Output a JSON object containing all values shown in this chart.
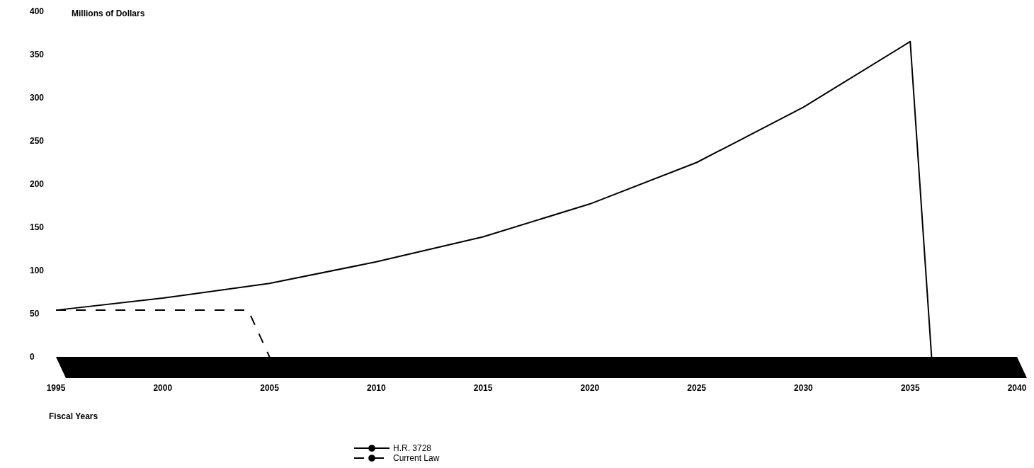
{
  "chart_data": {
    "type": "line",
    "ylabel": "Millions of Dollars",
    "xlabel": "Fiscal Years",
    "xlim": [
      1995,
      2040
    ],
    "xticks": [
      1995,
      2000,
      2005,
      2010,
      2015,
      2020,
      2025,
      2030,
      2035,
      2040
    ],
    "ylim": [
      0,
      400
    ],
    "yticks": [
      0,
      50,
      100,
      150,
      200,
      250,
      300,
      350,
      400
    ],
    "grid": false,
    "legend": "bottom",
    "marker": "none",
    "series": [
      {
        "name": "H.R. 3728",
        "color": "#000000",
        "line_style": "solid",
        "x": [
          1995,
          2000,
          2005,
          2010,
          2015,
          2020,
          2025,
          2030,
          2035,
          2036
        ],
        "values": [
          54,
          68,
          85,
          110,
          139,
          177,
          225,
          289,
          365,
          0
        ]
      },
      {
        "name": "Current Law",
        "color": "#000000",
        "line_style": "dashed",
        "x": [
          1995,
          2004,
          2005
        ],
        "values": [
          54,
          54,
          0
        ]
      }
    ]
  }
}
